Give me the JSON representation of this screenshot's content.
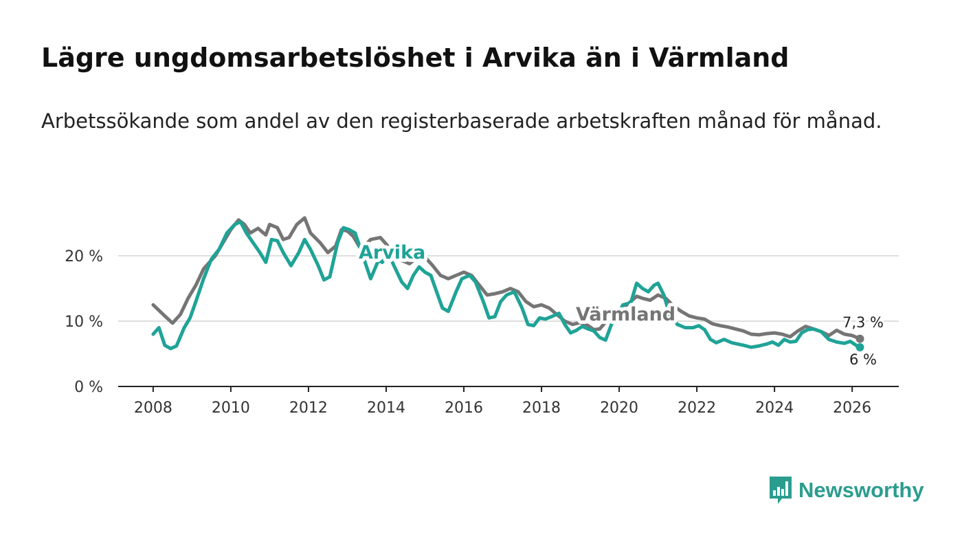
{
  "title": "Lägre ungdomsarbetslöshet i Arvika än i Värmland",
  "subtitle": "Arbetssökande som andel av den registerbaserade arbetskraften månad för månad.",
  "logo": {
    "text": "Newsworthy",
    "icon": "bar-chart-speech-bubble-icon",
    "color": "#2a9d8f"
  },
  "chart_data": {
    "type": "line",
    "x_unit": "year",
    "xlim": [
      2007.1,
      2027.2
    ],
    "ylim": [
      0,
      20
    ],
    "ylabel": "",
    "xlabel": "",
    "x_ticks": [
      2008,
      2010,
      2012,
      2014,
      2016,
      2018,
      2020,
      2022,
      2024,
      2026
    ],
    "x_tick_labels": [
      "2008",
      "2010",
      "2012",
      "2014",
      "2016",
      "2018",
      "2020",
      "2022",
      "2024",
      "2026"
    ],
    "y_ticks": [
      0,
      10,
      20
    ],
    "y_tick_labels": [
      "0 %",
      "10 %",
      "20 %"
    ],
    "grid": "horizontal",
    "series": [
      {
        "name": "Värmland",
        "label": "Värmland",
        "color": "#757575",
        "end_label": "7,3 %",
        "points": [
          [
            2008.0,
            12.5
          ],
          [
            2008.3,
            10.8
          ],
          [
            2008.5,
            9.7
          ],
          [
            2008.7,
            11
          ],
          [
            2008.9,
            13.5
          ],
          [
            2009.1,
            15.5
          ],
          [
            2009.3,
            18
          ],
          [
            2009.6,
            20
          ],
          [
            2009.8,
            22
          ],
          [
            2010.0,
            24
          ],
          [
            2010.2,
            25.5
          ],
          [
            2010.35,
            24.8
          ],
          [
            2010.5,
            23.5
          ],
          [
            2010.7,
            24.2
          ],
          [
            2010.9,
            23.2
          ],
          [
            2011.0,
            24.8
          ],
          [
            2011.2,
            24.3
          ],
          [
            2011.35,
            22.5
          ],
          [
            2011.5,
            22.8
          ],
          [
            2011.7,
            24.8
          ],
          [
            2011.9,
            25.8
          ],
          [
            2012.05,
            23.5
          ],
          [
            2012.3,
            22
          ],
          [
            2012.5,
            20.5
          ],
          [
            2012.7,
            21.5
          ],
          [
            2012.85,
            24
          ],
          [
            2013.0,
            23.8
          ],
          [
            2013.15,
            23
          ],
          [
            2013.35,
            21
          ],
          [
            2013.6,
            22.5
          ],
          [
            2013.85,
            22.8
          ],
          [
            2014.0,
            21.8
          ],
          [
            2014.2,
            20.2
          ],
          [
            2014.4,
            19.3
          ],
          [
            2014.6,
            18.8
          ],
          [
            2014.8,
            19.8
          ],
          [
            2015.0,
            19.8
          ],
          [
            2015.2,
            18.5
          ],
          [
            2015.4,
            17
          ],
          [
            2015.6,
            16.5
          ],
          [
            2015.8,
            17
          ],
          [
            2016.0,
            17.5
          ],
          [
            2016.2,
            17
          ],
          [
            2016.4,
            15.5
          ],
          [
            2016.6,
            14
          ],
          [
            2016.8,
            14.2
          ],
          [
            2017.0,
            14.5
          ],
          [
            2017.2,
            15
          ],
          [
            2017.4,
            14.5
          ],
          [
            2017.6,
            13
          ],
          [
            2017.8,
            12.2
          ],
          [
            2018.0,
            12.5
          ],
          [
            2018.2,
            12
          ],
          [
            2018.4,
            11
          ],
          [
            2018.6,
            10
          ],
          [
            2018.8,
            9.5
          ],
          [
            2019.0,
            9.8
          ],
          [
            2019.2,
            9.3
          ],
          [
            2019.35,
            8.7
          ],
          [
            2019.5,
            8.8
          ],
          [
            2019.7,
            10.2
          ],
          [
            2019.9,
            11.5
          ],
          [
            2020.2,
            12.5
          ],
          [
            2020.45,
            13.8
          ],
          [
            2020.6,
            13.5
          ],
          [
            2020.8,
            13.2
          ],
          [
            2021.0,
            14
          ],
          [
            2021.2,
            13.5
          ],
          [
            2021.4,
            12.3
          ],
          [
            2021.6,
            11.5
          ],
          [
            2021.8,
            10.8
          ],
          [
            2022.0,
            10.5
          ],
          [
            2022.2,
            10.3
          ],
          [
            2022.4,
            9.6
          ],
          [
            2022.6,
            9.3
          ],
          [
            2022.8,
            9.1
          ],
          [
            2023.0,
            8.8
          ],
          [
            2023.2,
            8.5
          ],
          [
            2023.4,
            8.0
          ],
          [
            2023.6,
            7.9
          ],
          [
            2023.8,
            8.1
          ],
          [
            2024.0,
            8.2
          ],
          [
            2024.2,
            8.0
          ],
          [
            2024.4,
            7.6
          ],
          [
            2024.6,
            8.5
          ],
          [
            2024.8,
            9.2
          ],
          [
            2025.0,
            8.8
          ],
          [
            2025.2,
            8.4
          ],
          [
            2025.4,
            7.8
          ],
          [
            2025.6,
            8.6
          ],
          [
            2025.8,
            8.0
          ],
          [
            2026.0,
            7.8
          ],
          [
            2026.2,
            7.3
          ]
        ]
      },
      {
        "name": "Arvika",
        "label": "Arvika",
        "color": "#1fa397",
        "end_label": "6 %",
        "points": [
          [
            2008.0,
            8
          ],
          [
            2008.15,
            9
          ],
          [
            2008.3,
            6.3
          ],
          [
            2008.45,
            5.8
          ],
          [
            2008.6,
            6.2
          ],
          [
            2008.8,
            9
          ],
          [
            2008.95,
            10.5
          ],
          [
            2009.1,
            13
          ],
          [
            2009.3,
            16.5
          ],
          [
            2009.5,
            19.5
          ],
          [
            2009.7,
            21
          ],
          [
            2009.9,
            23.5
          ],
          [
            2010.1,
            24.8
          ],
          [
            2010.25,
            25.2
          ],
          [
            2010.4,
            23.5
          ],
          [
            2010.55,
            22.2
          ],
          [
            2010.75,
            20.5
          ],
          [
            2010.9,
            19
          ],
          [
            2011.05,
            22.5
          ],
          [
            2011.2,
            22.3
          ],
          [
            2011.35,
            20.5
          ],
          [
            2011.55,
            18.5
          ],
          [
            2011.75,
            20.5
          ],
          [
            2011.9,
            22.5
          ],
          [
            2012.05,
            21
          ],
          [
            2012.25,
            18.5
          ],
          [
            2012.4,
            16.3
          ],
          [
            2012.55,
            16.8
          ],
          [
            2012.75,
            22
          ],
          [
            2012.9,
            24.3
          ],
          [
            2013.05,
            24
          ],
          [
            2013.2,
            23.5
          ],
          [
            2013.4,
            20
          ],
          [
            2013.6,
            16.5
          ],
          [
            2013.8,
            19.3
          ],
          [
            2013.9,
            19
          ],
          [
            2014.05,
            20.5
          ],
          [
            2014.2,
            18.5
          ],
          [
            2014.4,
            16
          ],
          [
            2014.55,
            15
          ],
          [
            2014.7,
            17
          ],
          [
            2014.85,
            18.3
          ],
          [
            2015.0,
            17.5
          ],
          [
            2015.15,
            17
          ],
          [
            2015.3,
            14.5
          ],
          [
            2015.45,
            12
          ],
          [
            2015.6,
            11.5
          ],
          [
            2015.8,
            14.5
          ],
          [
            2015.95,
            16.5
          ],
          [
            2016.15,
            17
          ],
          [
            2016.3,
            16
          ],
          [
            2016.5,
            13
          ],
          [
            2016.65,
            10.5
          ],
          [
            2016.8,
            10.7
          ],
          [
            2016.95,
            13
          ],
          [
            2017.1,
            14
          ],
          [
            2017.3,
            14.5
          ],
          [
            2017.5,
            12
          ],
          [
            2017.65,
            9.5
          ],
          [
            2017.8,
            9.3
          ],
          [
            2017.95,
            10.5
          ],
          [
            2018.1,
            10.3
          ],
          [
            2018.3,
            10.8
          ],
          [
            2018.45,
            11.2
          ],
          [
            2018.6,
            9.5
          ],
          [
            2018.75,
            8.2
          ],
          [
            2018.9,
            8.6
          ],
          [
            2019.05,
            9.2
          ],
          [
            2019.2,
            8.8
          ],
          [
            2019.35,
            8.5
          ],
          [
            2019.5,
            7.5
          ],
          [
            2019.65,
            7.1
          ],
          [
            2019.8,
            9.5
          ],
          [
            2019.95,
            11
          ],
          [
            2020.1,
            12.5
          ],
          [
            2020.3,
            12.8
          ],
          [
            2020.45,
            15.8
          ],
          [
            2020.6,
            15
          ],
          [
            2020.75,
            14.5
          ],
          [
            2020.9,
            15.5
          ],
          [
            2021.0,
            15.8
          ],
          [
            2021.15,
            14
          ],
          [
            2021.3,
            11
          ],
          [
            2021.5,
            9.5
          ],
          [
            2021.7,
            9
          ],
          [
            2021.9,
            9
          ],
          [
            2022.05,
            9.3
          ],
          [
            2022.2,
            8.7
          ],
          [
            2022.35,
            7.2
          ],
          [
            2022.5,
            6.7
          ],
          [
            2022.7,
            7.2
          ],
          [
            2022.9,
            6.7
          ],
          [
            2023.05,
            6.5
          ],
          [
            2023.2,
            6.3
          ],
          [
            2023.4,
            6
          ],
          [
            2023.6,
            6.2
          ],
          [
            2023.8,
            6.5
          ],
          [
            2023.95,
            6.8
          ],
          [
            2024.1,
            6.3
          ],
          [
            2024.25,
            7.2
          ],
          [
            2024.4,
            6.8
          ],
          [
            2024.55,
            6.9
          ],
          [
            2024.7,
            8.2
          ],
          [
            2024.85,
            8.7
          ],
          [
            2025.0,
            8.8
          ],
          [
            2025.2,
            8.4
          ],
          [
            2025.4,
            7.2
          ],
          [
            2025.6,
            6.8
          ],
          [
            2025.8,
            6.6
          ],
          [
            2025.95,
            6.9
          ],
          [
            2026.1,
            6.3
          ],
          [
            2026.2,
            6.0
          ]
        ]
      }
    ]
  }
}
